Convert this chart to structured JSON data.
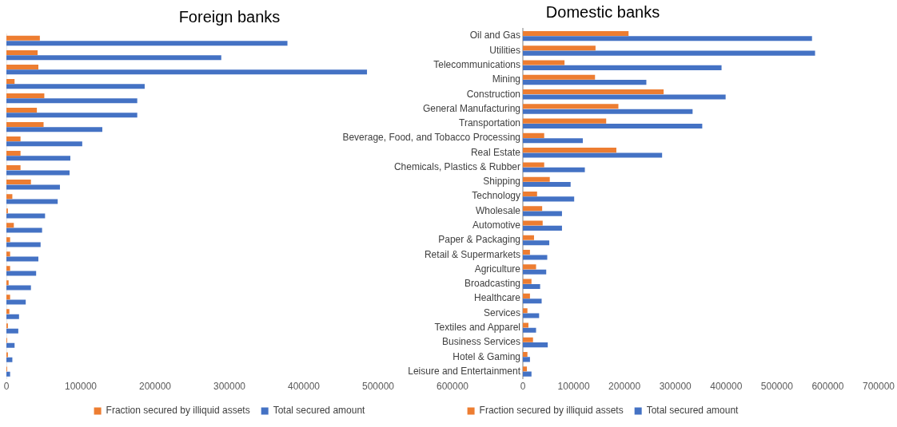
{
  "chart_data": [
    {
      "type": "bar",
      "orientation": "horizontal",
      "title": "Foreign banks",
      "categories": [
        null,
        null,
        null,
        null,
        null,
        null,
        null,
        null,
        null,
        null,
        null,
        null,
        null,
        null,
        null,
        null,
        null,
        null,
        null,
        null,
        null,
        null,
        null,
        null
      ],
      "series": [
        {
          "name": "Fraction secured by illiquid assets",
          "color": "#ed7d31",
          "values": [
            45000,
            42000,
            43000,
            11000,
            51000,
            41000,
            50000,
            19000,
            19000,
            19000,
            33000,
            8000,
            2000,
            10000,
            5000,
            5000,
            5000,
            3000,
            5000,
            4000,
            2000,
            1000,
            2000,
            1000
          ]
        },
        {
          "name": "Total secured amount",
          "color": "#4472c4",
          "values": [
            378000,
            289000,
            485000,
            186000,
            176000,
            176000,
            129000,
            102000,
            86000,
            85000,
            72000,
            69000,
            52000,
            48000,
            46000,
            43000,
            40000,
            33000,
            26000,
            17000,
            16000,
            11000,
            8000,
            5000
          ]
        }
      ],
      "xlim": [
        0,
        600000
      ],
      "xticks": [
        0,
        100000,
        200000,
        300000,
        400000,
        500000,
        600000
      ],
      "grid": false,
      "legend": "bottom",
      "tick_labels": "x"
    },
    {
      "type": "bar",
      "orientation": "horizontal",
      "title": "Domestic banks",
      "categories": [
        "Oil and Gas",
        "Utilities",
        "Telecommunications",
        "Mining",
        "Construction",
        "General Manufacturing",
        "Transportation",
        "Beverage, Food, and Tobacco Processing",
        "Real Estate",
        "Chemicals, Plastics & Rubber",
        "Shipping",
        "Technology",
        "Wholesale",
        "Automotive",
        "Paper & Packaging",
        "Retail & Supermarkets",
        "Agriculture",
        "Broadcasting",
        "Healthcare",
        "Services",
        "Textiles and Apparel",
        "Business Services",
        "Hotel & Gaming",
        "Leisure and Entertainment"
      ],
      "series": [
        {
          "name": "Fraction secured by illiquid assets",
          "color": "#ed7d31",
          "values": [
            208000,
            143000,
            82000,
            142000,
            277000,
            188000,
            164000,
            42000,
            184000,
            42000,
            53000,
            28000,
            38000,
            39000,
            22000,
            14000,
            26000,
            17000,
            14000,
            9000,
            11000,
            20000,
            9000,
            8000
          ]
        },
        {
          "name": "Total secured amount",
          "color": "#4472c4",
          "values": [
            569000,
            575000,
            391000,
            243000,
            399000,
            334000,
            353000,
            118000,
            274000,
            122000,
            94000,
            101000,
            77000,
            77000,
            52000,
            48000,
            46000,
            34000,
            37000,
            32000,
            26000,
            49000,
            14000,
            17000
          ]
        }
      ],
      "xlim": [
        0,
        700000
      ],
      "xticks": [
        0,
        100000,
        200000,
        300000,
        400000,
        500000,
        600000,
        700000
      ],
      "grid": false,
      "legend": "bottom"
    }
  ]
}
